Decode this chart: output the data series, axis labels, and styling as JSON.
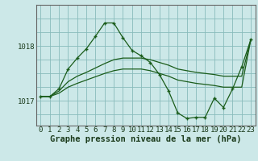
{
  "xlabel": "Graphe pression niveau de la mer (hPa)",
  "bg_color": "#cce8e8",
  "grid_color": "#88bbbb",
  "line_color": "#1a5c1a",
  "ylim": [
    1016.55,
    1018.75
  ],
  "xlim": [
    -0.5,
    23.5
  ],
  "yticks": [
    1017,
    1018
  ],
  "xticks": [
    0,
    1,
    2,
    3,
    4,
    5,
    6,
    7,
    8,
    9,
    10,
    11,
    12,
    13,
    14,
    15,
    16,
    17,
    18,
    19,
    20,
    21,
    22,
    23
  ],
  "line1_x": [
    0,
    1,
    2,
    3,
    4,
    5,
    6,
    7,
    8,
    9,
    10,
    11,
    12,
    13,
    14,
    15,
    16,
    17,
    18,
    19,
    20,
    21,
    22,
    23
  ],
  "line1_y": [
    1017.08,
    1017.08,
    1017.22,
    1017.58,
    1017.78,
    1017.95,
    1018.18,
    1018.42,
    1018.42,
    1018.15,
    1017.92,
    1017.82,
    1017.7,
    1017.48,
    1017.18,
    1016.78,
    1016.68,
    1016.7,
    1016.7,
    1017.05,
    1016.88,
    1017.22,
    1017.62,
    1018.12
  ],
  "line2_x": [
    0,
    1,
    2,
    3,
    4,
    5,
    6,
    7,
    8,
    9,
    10,
    11,
    12,
    13,
    14,
    15,
    16,
    17,
    18,
    19,
    20,
    21,
    22,
    23
  ],
  "line2_y": [
    1017.08,
    1017.08,
    1017.18,
    1017.35,
    1017.45,
    1017.52,
    1017.6,
    1017.68,
    1017.75,
    1017.78,
    1017.78,
    1017.78,
    1017.75,
    1017.7,
    1017.65,
    1017.58,
    1017.55,
    1017.52,
    1017.5,
    1017.48,
    1017.45,
    1017.45,
    1017.45,
    1018.12
  ],
  "line3_x": [
    0,
    1,
    2,
    3,
    4,
    5,
    6,
    7,
    8,
    9,
    10,
    11,
    12,
    13,
    14,
    15,
    16,
    17,
    18,
    19,
    20,
    21,
    22,
    23
  ],
  "line3_y": [
    1017.08,
    1017.08,
    1017.14,
    1017.25,
    1017.32,
    1017.38,
    1017.44,
    1017.5,
    1017.55,
    1017.58,
    1017.58,
    1017.58,
    1017.55,
    1017.5,
    1017.45,
    1017.38,
    1017.35,
    1017.32,
    1017.3,
    1017.28,
    1017.25,
    1017.25,
    1017.25,
    1018.12
  ],
  "tick_fontsize": 6.5,
  "xlabel_fontsize": 7.5,
  "linewidth": 0.9,
  "marker": "+"
}
